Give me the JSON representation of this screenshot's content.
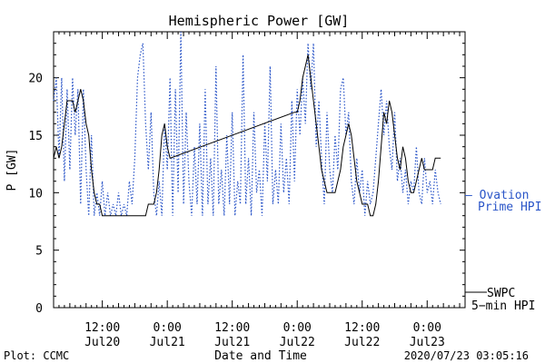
{
  "chart_data": {
    "type": "line",
    "title": "Hemispheric Power [GW]",
    "ylabel": "P [GW]",
    "xlabel": "Date and Time",
    "ylim": [
      0,
      24
    ],
    "xlim": [
      "2020-07-20 03:00",
      "2020-07-23 07:00"
    ],
    "grid": false,
    "y_ticks": [
      "0",
      "5",
      "10",
      "15",
      "20"
    ],
    "x_ticks": [
      {
        "line1": "12:00",
        "line2": "Jul20",
        "t": "2020-07-20 12:00"
      },
      {
        "line1": "0:00",
        "line2": "Jul21",
        "t": "2020-07-21 00:00"
      },
      {
        "line1": "12:00",
        "line2": "Jul21",
        "t": "2020-07-21 12:00"
      },
      {
        "line1": "0:00",
        "line2": "Jul22",
        "t": "2020-07-22 00:00"
      },
      {
        "line1": "12:00",
        "line2": "Jul22",
        "t": "2020-07-22 12:00"
      },
      {
        "line1": "0:00",
        "line2": "Jul23",
        "t": "2020-07-23 00:00"
      }
    ],
    "series": [
      {
        "name": "SWPC 5-min HPI",
        "color": "#000000",
        "style": "solid",
        "points": [
          [
            "2020-07-20 03:00",
            13
          ],
          [
            "2020-07-20 03:30",
            14
          ],
          [
            "2020-07-20 04:00",
            13
          ],
          [
            "2020-07-20 04:30",
            14
          ],
          [
            "2020-07-20 05:00",
            16
          ],
          [
            "2020-07-20 05:30",
            18
          ],
          [
            "2020-07-20 06:30",
            18
          ],
          [
            "2020-07-20 07:00",
            17
          ],
          [
            "2020-07-20 07:30",
            18
          ],
          [
            "2020-07-20 08:00",
            19
          ],
          [
            "2020-07-20 08:30",
            18
          ],
          [
            "2020-07-20 09:00",
            16
          ],
          [
            "2020-07-20 09:30",
            15
          ],
          [
            "2020-07-20 10:00",
            12
          ],
          [
            "2020-07-20 10:30",
            10
          ],
          [
            "2020-07-20 11:00",
            9
          ],
          [
            "2020-07-20 11:30",
            9
          ],
          [
            "2020-07-20 12:00",
            8
          ],
          [
            "2020-07-20 20:00",
            8
          ],
          [
            "2020-07-20 20:30",
            9
          ],
          [
            "2020-07-20 21:30",
            9
          ],
          [
            "2020-07-20 22:00",
            10
          ],
          [
            "2020-07-20 22:30",
            12
          ],
          [
            "2020-07-20 23:00",
            15
          ],
          [
            "2020-07-20 23:30",
            16
          ],
          [
            "2020-07-21 00:00",
            14
          ],
          [
            "2020-07-21 00:30",
            13
          ],
          [
            "2020-07-21 23:30",
            17
          ],
          [
            "2020-07-22 00:00",
            17
          ],
          [
            "2020-07-22 00:30",
            18
          ],
          [
            "2020-07-22 01:00",
            20
          ],
          [
            "2020-07-22 01:30",
            21
          ],
          [
            "2020-07-22 02:00",
            22
          ],
          [
            "2020-07-22 02:30",
            20
          ],
          [
            "2020-07-22 03:00",
            18
          ],
          [
            "2020-07-22 03:30",
            16
          ],
          [
            "2020-07-22 04:00",
            14
          ],
          [
            "2020-07-22 04:30",
            12
          ],
          [
            "2020-07-22 05:00",
            11
          ],
          [
            "2020-07-22 05:30",
            10
          ],
          [
            "2020-07-22 07:00",
            10
          ],
          [
            "2020-07-22 08:00",
            12
          ],
          [
            "2020-07-22 08:30",
            14
          ],
          [
            "2020-07-22 09:00",
            15
          ],
          [
            "2020-07-22 09:30",
            16
          ],
          [
            "2020-07-22 10:00",
            15
          ],
          [
            "2020-07-22 10:30",
            13
          ],
          [
            "2020-07-22 11:00",
            11
          ],
          [
            "2020-07-22 11:30",
            10
          ],
          [
            "2020-07-22 12:00",
            9
          ],
          [
            "2020-07-22 13:00",
            9
          ],
          [
            "2020-07-22 13:30",
            8
          ],
          [
            "2020-07-22 14:00",
            8
          ],
          [
            "2020-07-22 14:30",
            9
          ],
          [
            "2020-07-22 15:00",
            11
          ],
          [
            "2020-07-22 15:30",
            14
          ],
          [
            "2020-07-22 16:00",
            17
          ],
          [
            "2020-07-22 16:30",
            16
          ],
          [
            "2020-07-22 17:00",
            18
          ],
          [
            "2020-07-22 17:30",
            17
          ],
          [
            "2020-07-22 18:00",
            15
          ],
          [
            "2020-07-22 18:30",
            13
          ],
          [
            "2020-07-22 19:00",
            12
          ],
          [
            "2020-07-22 19:30",
            14
          ],
          [
            "2020-07-22 20:00",
            13
          ],
          [
            "2020-07-22 20:30",
            11
          ],
          [
            "2020-07-22 21:00",
            10
          ],
          [
            "2020-07-22 21:30",
            10
          ],
          [
            "2020-07-22 22:00",
            11
          ],
          [
            "2020-07-22 22:30",
            12
          ],
          [
            "2020-07-22 23:00",
            13
          ],
          [
            "2020-07-22 23:30",
            12
          ],
          [
            "2020-07-23 00:00",
            12
          ],
          [
            "2020-07-23 01:00",
            12
          ],
          [
            "2020-07-23 01:30",
            13
          ],
          [
            "2020-07-23 02:30",
            13
          ]
        ]
      },
      {
        "name": "Ovation Prime HPI",
        "color": "#2a55c8",
        "style": "dotted",
        "points": [
          [
            "2020-07-20 03:00",
            18
          ],
          [
            "2020-07-20 03:30",
            20
          ],
          [
            "2020-07-20 04:00",
            13
          ],
          [
            "2020-07-20 04:30",
            20
          ],
          [
            "2020-07-20 05:00",
            11
          ],
          [
            "2020-07-20 05:30",
            19
          ],
          [
            "2020-07-20 06:00",
            12
          ],
          [
            "2020-07-20 06:30",
            20
          ],
          [
            "2020-07-20 07:00",
            15
          ],
          [
            "2020-07-20 07:30",
            19
          ],
          [
            "2020-07-20 08:00",
            9
          ],
          [
            "2020-07-20 08:30",
            19
          ],
          [
            "2020-07-20 09:00",
            12
          ],
          [
            "2020-07-20 09:30",
            8
          ],
          [
            "2020-07-20 10:00",
            15
          ],
          [
            "2020-07-20 10:30",
            8
          ],
          [
            "2020-07-20 11:00",
            10
          ],
          [
            "2020-07-20 11:30",
            8
          ],
          [
            "2020-07-20 12:00",
            11
          ],
          [
            "2020-07-20 12:30",
            8
          ],
          [
            "2020-07-20 13:00",
            10
          ],
          [
            "2020-07-20 13:30",
            8
          ],
          [
            "2020-07-20 14:00",
            9
          ],
          [
            "2020-07-20 14:30",
            8
          ],
          [
            "2020-07-20 15:00",
            10
          ],
          [
            "2020-07-20 15:30",
            8
          ],
          [
            "2020-07-20 16:00",
            9
          ],
          [
            "2020-07-20 16:30",
            8
          ],
          [
            "2020-07-20 17:00",
            11
          ],
          [
            "2020-07-20 17:30",
            9
          ],
          [
            "2020-07-20 18:00",
            13
          ],
          [
            "2020-07-20 18:30",
            20
          ],
          [
            "2020-07-20 19:00",
            22
          ],
          [
            "2020-07-20 19:30",
            23
          ],
          [
            "2020-07-20 20:00",
            16
          ],
          [
            "2020-07-20 20:30",
            12
          ],
          [
            "2020-07-20 21:00",
            17
          ],
          [
            "2020-07-20 21:30",
            10
          ],
          [
            "2020-07-20 22:00",
            8
          ],
          [
            "2020-07-20 22:30",
            11
          ],
          [
            "2020-07-20 23:00",
            8
          ],
          [
            "2020-07-20 23:30",
            16
          ],
          [
            "2020-07-21 00:00",
            12
          ],
          [
            "2020-07-21 00:30",
            20
          ],
          [
            "2020-07-21 01:00",
            8
          ],
          [
            "2020-07-21 01:30",
            19
          ],
          [
            "2020-07-21 02:00",
            10
          ],
          [
            "2020-07-21 02:30",
            24
          ],
          [
            "2020-07-21 03:00",
            9
          ],
          [
            "2020-07-21 03:30",
            17
          ],
          [
            "2020-07-21 04:00",
            11
          ],
          [
            "2020-07-21 04:30",
            8
          ],
          [
            "2020-07-21 05:00",
            14
          ],
          [
            "2020-07-21 05:30",
            9
          ],
          [
            "2020-07-21 06:00",
            16
          ],
          [
            "2020-07-21 06:30",
            8
          ],
          [
            "2020-07-21 07:00",
            19
          ],
          [
            "2020-07-21 07:30",
            9
          ],
          [
            "2020-07-21 08:00",
            13
          ],
          [
            "2020-07-21 08:30",
            8
          ],
          [
            "2020-07-21 09:00",
            21
          ],
          [
            "2020-07-21 09:30",
            9
          ],
          [
            "2020-07-21 10:00",
            12
          ],
          [
            "2020-07-21 10:30",
            8
          ],
          [
            "2020-07-21 11:00",
            15
          ],
          [
            "2020-07-21 11:30",
            9
          ],
          [
            "2020-07-21 12:00",
            17
          ],
          [
            "2020-07-21 12:30",
            8
          ],
          [
            "2020-07-21 13:00",
            11
          ],
          [
            "2020-07-21 13:30",
            9
          ],
          [
            "2020-07-21 14:00",
            22
          ],
          [
            "2020-07-21 14:30",
            9
          ],
          [
            "2020-07-21 15:00",
            13
          ],
          [
            "2020-07-21 15:30",
            8
          ],
          [
            "2020-07-21 16:00",
            17
          ],
          [
            "2020-07-21 16:30",
            10
          ],
          [
            "2020-07-21 17:00",
            12
          ],
          [
            "2020-07-21 17:30",
            8
          ],
          [
            "2020-07-21 18:00",
            16
          ],
          [
            "2020-07-21 18:30",
            11
          ],
          [
            "2020-07-21 19:00",
            21
          ],
          [
            "2020-07-21 19:30",
            9
          ],
          [
            "2020-07-21 20:00",
            12
          ],
          [
            "2020-07-21 20:30",
            9
          ],
          [
            "2020-07-21 21:00",
            16
          ],
          [
            "2020-07-21 21:30",
            10
          ],
          [
            "2020-07-21 22:00",
            13
          ],
          [
            "2020-07-21 22:30",
            9
          ],
          [
            "2020-07-21 23:00",
            18
          ],
          [
            "2020-07-21 23:30",
            11
          ],
          [
            "2020-07-22 00:00",
            19
          ],
          [
            "2020-07-22 00:30",
            15
          ],
          [
            "2020-07-22 01:00",
            20
          ],
          [
            "2020-07-22 01:30",
            16
          ],
          [
            "2020-07-22 02:00",
            23
          ],
          [
            "2020-07-22 02:30",
            19
          ],
          [
            "2020-07-22 03:00",
            23
          ],
          [
            "2020-07-22 03:30",
            14
          ],
          [
            "2020-07-22 04:00",
            18
          ],
          [
            "2020-07-22 04:30",
            13
          ],
          [
            "2020-07-22 05:00",
            9
          ],
          [
            "2020-07-22 05:30",
            17
          ],
          [
            "2020-07-22 06:00",
            12
          ],
          [
            "2020-07-22 06:30",
            10
          ],
          [
            "2020-07-22 07:00",
            15
          ],
          [
            "2020-07-22 07:30",
            12
          ],
          [
            "2020-07-22 08:00",
            19
          ],
          [
            "2020-07-22 08:30",
            20
          ],
          [
            "2020-07-22 09:00",
            15
          ],
          [
            "2020-07-22 09:30",
            17
          ],
          [
            "2020-07-22 10:00",
            11
          ],
          [
            "2020-07-22 10:30",
            9
          ],
          [
            "2020-07-22 11:00",
            13
          ],
          [
            "2020-07-22 11:30",
            10
          ],
          [
            "2020-07-22 12:00",
            12
          ],
          [
            "2020-07-22 12:30",
            8
          ],
          [
            "2020-07-22 13:00",
            11
          ],
          [
            "2020-07-22 13:30",
            9
          ],
          [
            "2020-07-22 14:00",
            10
          ],
          [
            "2020-07-22 14:30",
            13
          ],
          [
            "2020-07-22 15:00",
            16
          ],
          [
            "2020-07-22 15:30",
            19
          ],
          [
            "2020-07-22 16:00",
            15
          ],
          [
            "2020-07-22 16:30",
            18
          ],
          [
            "2020-07-22 17:00",
            14
          ],
          [
            "2020-07-22 17:30",
            12
          ],
          [
            "2020-07-22 18:00",
            17
          ],
          [
            "2020-07-22 18:30",
            11
          ],
          [
            "2020-07-22 19:00",
            13
          ],
          [
            "2020-07-22 19:30",
            10
          ],
          [
            "2020-07-22 20:00",
            12
          ],
          [
            "2020-07-22 20:30",
            9
          ],
          [
            "2020-07-22 21:00",
            11
          ],
          [
            "2020-07-22 21:30",
            10
          ],
          [
            "2020-07-22 22:00",
            14
          ],
          [
            "2020-07-22 22:30",
            10
          ],
          [
            "2020-07-22 23:00",
            9
          ],
          [
            "2020-07-22 23:30",
            13
          ],
          [
            "2020-07-23 00:00",
            10
          ],
          [
            "2020-07-23 00:30",
            11
          ],
          [
            "2020-07-23 01:00",
            9
          ],
          [
            "2020-07-23 01:30",
            12
          ],
          [
            "2020-07-23 02:00",
            10
          ],
          [
            "2020-07-23 02:30",
            9
          ]
        ]
      }
    ],
    "legend": {
      "placement": "right",
      "ovation_line1": "— Ovation",
      "ovation_line2": "Prime HPI",
      "swpc_line1": "SWPC",
      "swpc_line2": "5−min HPI"
    }
  },
  "footer": {
    "plot_credit": "Plot: CCMC",
    "timestamp": "2020/07/23 03:05:16"
  }
}
